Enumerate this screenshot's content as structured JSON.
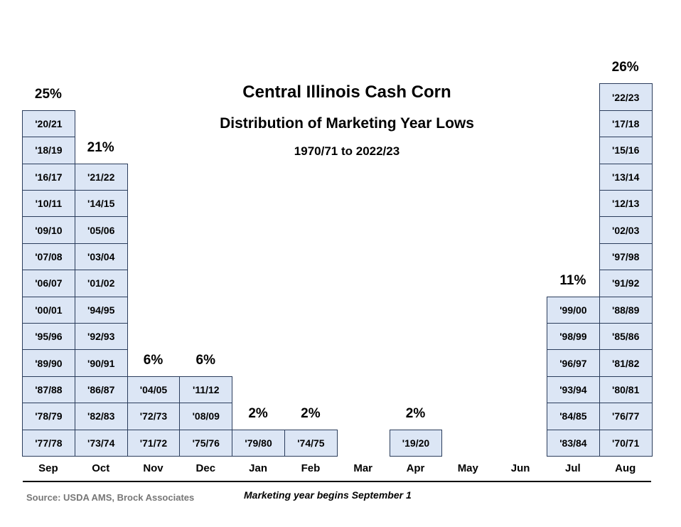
{
  "chart_data": {
    "type": "bar",
    "title": "Central Illinois Cash Corn",
    "subtitle": "Distribution of Marketing Year Lows",
    "range": "1970/71 to 2022/23",
    "categories": [
      "Sep",
      "Oct",
      "Nov",
      "Dec",
      "Jan",
      "Feb",
      "Mar",
      "Apr",
      "May",
      "Jun",
      "Jul",
      "Aug"
    ],
    "percent_labels": [
      "25%",
      "21%",
      "6%",
      "6%",
      "2%",
      "2%",
      "",
      "2%",
      "",
      "",
      "11%",
      "26%"
    ],
    "values": [
      25,
      21,
      6,
      6,
      2,
      2,
      0,
      2,
      0,
      0,
      11,
      26
    ],
    "years": [
      [
        "'77/78",
        "'78/79",
        "'87/88",
        "'89/90",
        "'95/96",
        "'00/01",
        "'06/07",
        "'07/08",
        "'09/10",
        "'10/11",
        "'16/17",
        "'18/19",
        "'20/21"
      ],
      [
        "'73/74",
        "'82/83",
        "'86/87",
        "'90/91",
        "'92/93",
        "'94/95",
        "'01/02",
        "'03/04",
        "'05/06",
        "'14/15",
        "'21/22"
      ],
      [
        "'71/72",
        "'72/73",
        "'04/05"
      ],
      [
        "'75/76",
        "'08/09",
        "'11/12"
      ],
      [
        "'79/80"
      ],
      [
        "'74/75"
      ],
      [],
      [
        "'19/20"
      ],
      [],
      [],
      [
        "'83/84",
        "'84/85",
        "'93/94",
        "'96/97",
        "'98/99",
        "'99/00"
      ],
      [
        "'70/71",
        "'76/77",
        "'80/81",
        "'81/82",
        "'85/86",
        "'88/89",
        "'91/92",
        "'97/98",
        "'02/03",
        "'12/13",
        "'13/14",
        "'15/16",
        "'17/18",
        "'22/23"
      ]
    ]
  },
  "footer": {
    "source": "Source: USDA AMS, Brock Associates",
    "note": "Marketing year begins September 1"
  }
}
